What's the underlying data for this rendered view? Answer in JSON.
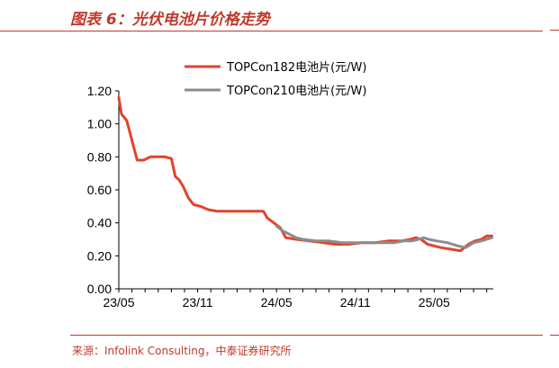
{
  "header": {
    "title": "图表 6：光伏电池片价格走势"
  },
  "footer": {
    "source": "来源：Infolink Consulting，中泰证券研究所"
  },
  "colors": {
    "accent": "#c0392b",
    "series_182": "#e2432a",
    "series_210": "#8c8c8c"
  },
  "chart_data": {
    "type": "line",
    "title": "",
    "xlabel": "",
    "ylabel": "",
    "ylim": [
      0,
      1.2
    ],
    "yticks": [
      "0.00",
      "0.20",
      "0.40",
      "0.60",
      "0.80",
      "1.00",
      "1.20"
    ],
    "xlim": [
      0,
      28.5
    ],
    "xticks": [
      {
        "value": 0,
        "label": "23/05"
      },
      {
        "value": 6,
        "label": "23/11"
      },
      {
        "value": 12,
        "label": "24/05"
      },
      {
        "value": 18,
        "label": "24/11"
      },
      {
        "value": 24,
        "label": "25/05"
      }
    ],
    "legend_position": "top-right",
    "series": [
      {
        "name": "TOPCon182电池片(元/W)",
        "color": "#e2432a",
        "x": [
          0,
          0.2,
          0.6,
          1.0,
          1.4,
          1.9,
          2.4,
          2.8,
          3.5,
          4.0,
          4.3,
          4.6,
          4.9,
          5.3,
          5.7,
          6.2,
          6.8,
          7.5,
          8.5,
          10.0,
          11.0,
          11.3,
          11.8,
          12.3,
          12.7,
          13.5,
          14.5,
          15.5,
          16.5,
          17.5,
          18.5,
          19.5,
          20.5,
          21.5,
          22.2,
          22.6,
          23.0,
          23.5,
          24.0,
          24.5,
          25.3,
          26.0,
          26.6,
          27.1,
          27.6,
          28.0,
          28.4
        ],
        "values": [
          1.16,
          1.06,
          1.02,
          0.9,
          0.78,
          0.78,
          0.8,
          0.8,
          0.8,
          0.79,
          0.68,
          0.66,
          0.62,
          0.55,
          0.51,
          0.5,
          0.48,
          0.47,
          0.47,
          0.47,
          0.47,
          0.43,
          0.4,
          0.37,
          0.31,
          0.3,
          0.29,
          0.28,
          0.27,
          0.27,
          0.28,
          0.28,
          0.29,
          0.29,
          0.3,
          0.31,
          0.3,
          0.27,
          0.26,
          0.25,
          0.24,
          0.23,
          0.27,
          0.29,
          0.3,
          0.32,
          0.32
        ]
      },
      {
        "name": "TOPCon210电池片(元/W)",
        "color": "#8c8c8c",
        "x": [
          12.0,
          12.5,
          13.0,
          13.5,
          14.0,
          15.0,
          16.0,
          17.0,
          18.0,
          19.0,
          20.0,
          21.0,
          21.7,
          22.3,
          22.8,
          23.2,
          23.6,
          24.2,
          25.0,
          25.8,
          26.4,
          27.0,
          27.6,
          28.0,
          28.4
        ],
        "values": [
          0.38,
          0.35,
          0.33,
          0.31,
          0.3,
          0.29,
          0.29,
          0.28,
          0.28,
          0.28,
          0.28,
          0.28,
          0.29,
          0.29,
          0.3,
          0.31,
          0.3,
          0.29,
          0.28,
          0.26,
          0.25,
          0.28,
          0.29,
          0.3,
          0.31
        ]
      }
    ]
  }
}
